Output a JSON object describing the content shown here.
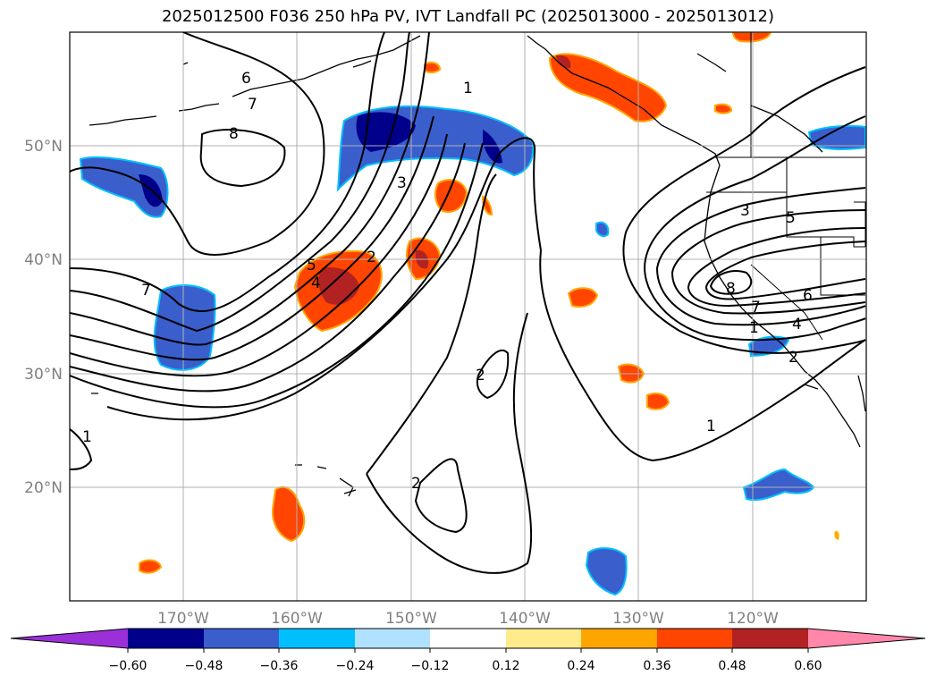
{
  "title": "2025012500 F036 250 hPa PV, IVT Landfall PC (2025013000 - 2025013012)",
  "map": {
    "projection": "PlateCarree",
    "lon_range": [
      -180,
      -110
    ],
    "lat_range": [
      10,
      60
    ],
    "gridlines": true,
    "lat_labels": [
      "50°N",
      "40°N",
      "30°N",
      "20°N"
    ],
    "lat_values": [
      50,
      40,
      30,
      20
    ],
    "lon_labels": [
      "170°W",
      "160°W",
      "150°W",
      "140°W",
      "130°W",
      "120°W"
    ],
    "lon_values": [
      -170,
      -160,
      -150,
      -140,
      -130,
      -120
    ],
    "contour_labels": [
      "6",
      "7",
      "8",
      "1",
      "3",
      "2",
      "5",
      "4",
      "7",
      "2",
      "2",
      "1",
      "1",
      "3",
      "5",
      "8",
      "7",
      "6",
      "4",
      "2",
      "1"
    ]
  },
  "colorbar": {
    "orientation": "horizontal",
    "extend": "both",
    "tick_labels": [
      "−0.60",
      "−0.48",
      "−0.36",
      "−0.24",
      "−0.12",
      "0.12",
      "0.24",
      "0.36",
      "0.48",
      "0.60"
    ],
    "colors": [
      "#9b30d9",
      "#00008b",
      "#3a5fcd",
      "#00bfff",
      "#b0e2ff",
      "#ffffff",
      "#ffeb8c",
      "#ffa500",
      "#ff4500",
      "#b22222",
      "#ff88aa"
    ]
  }
}
